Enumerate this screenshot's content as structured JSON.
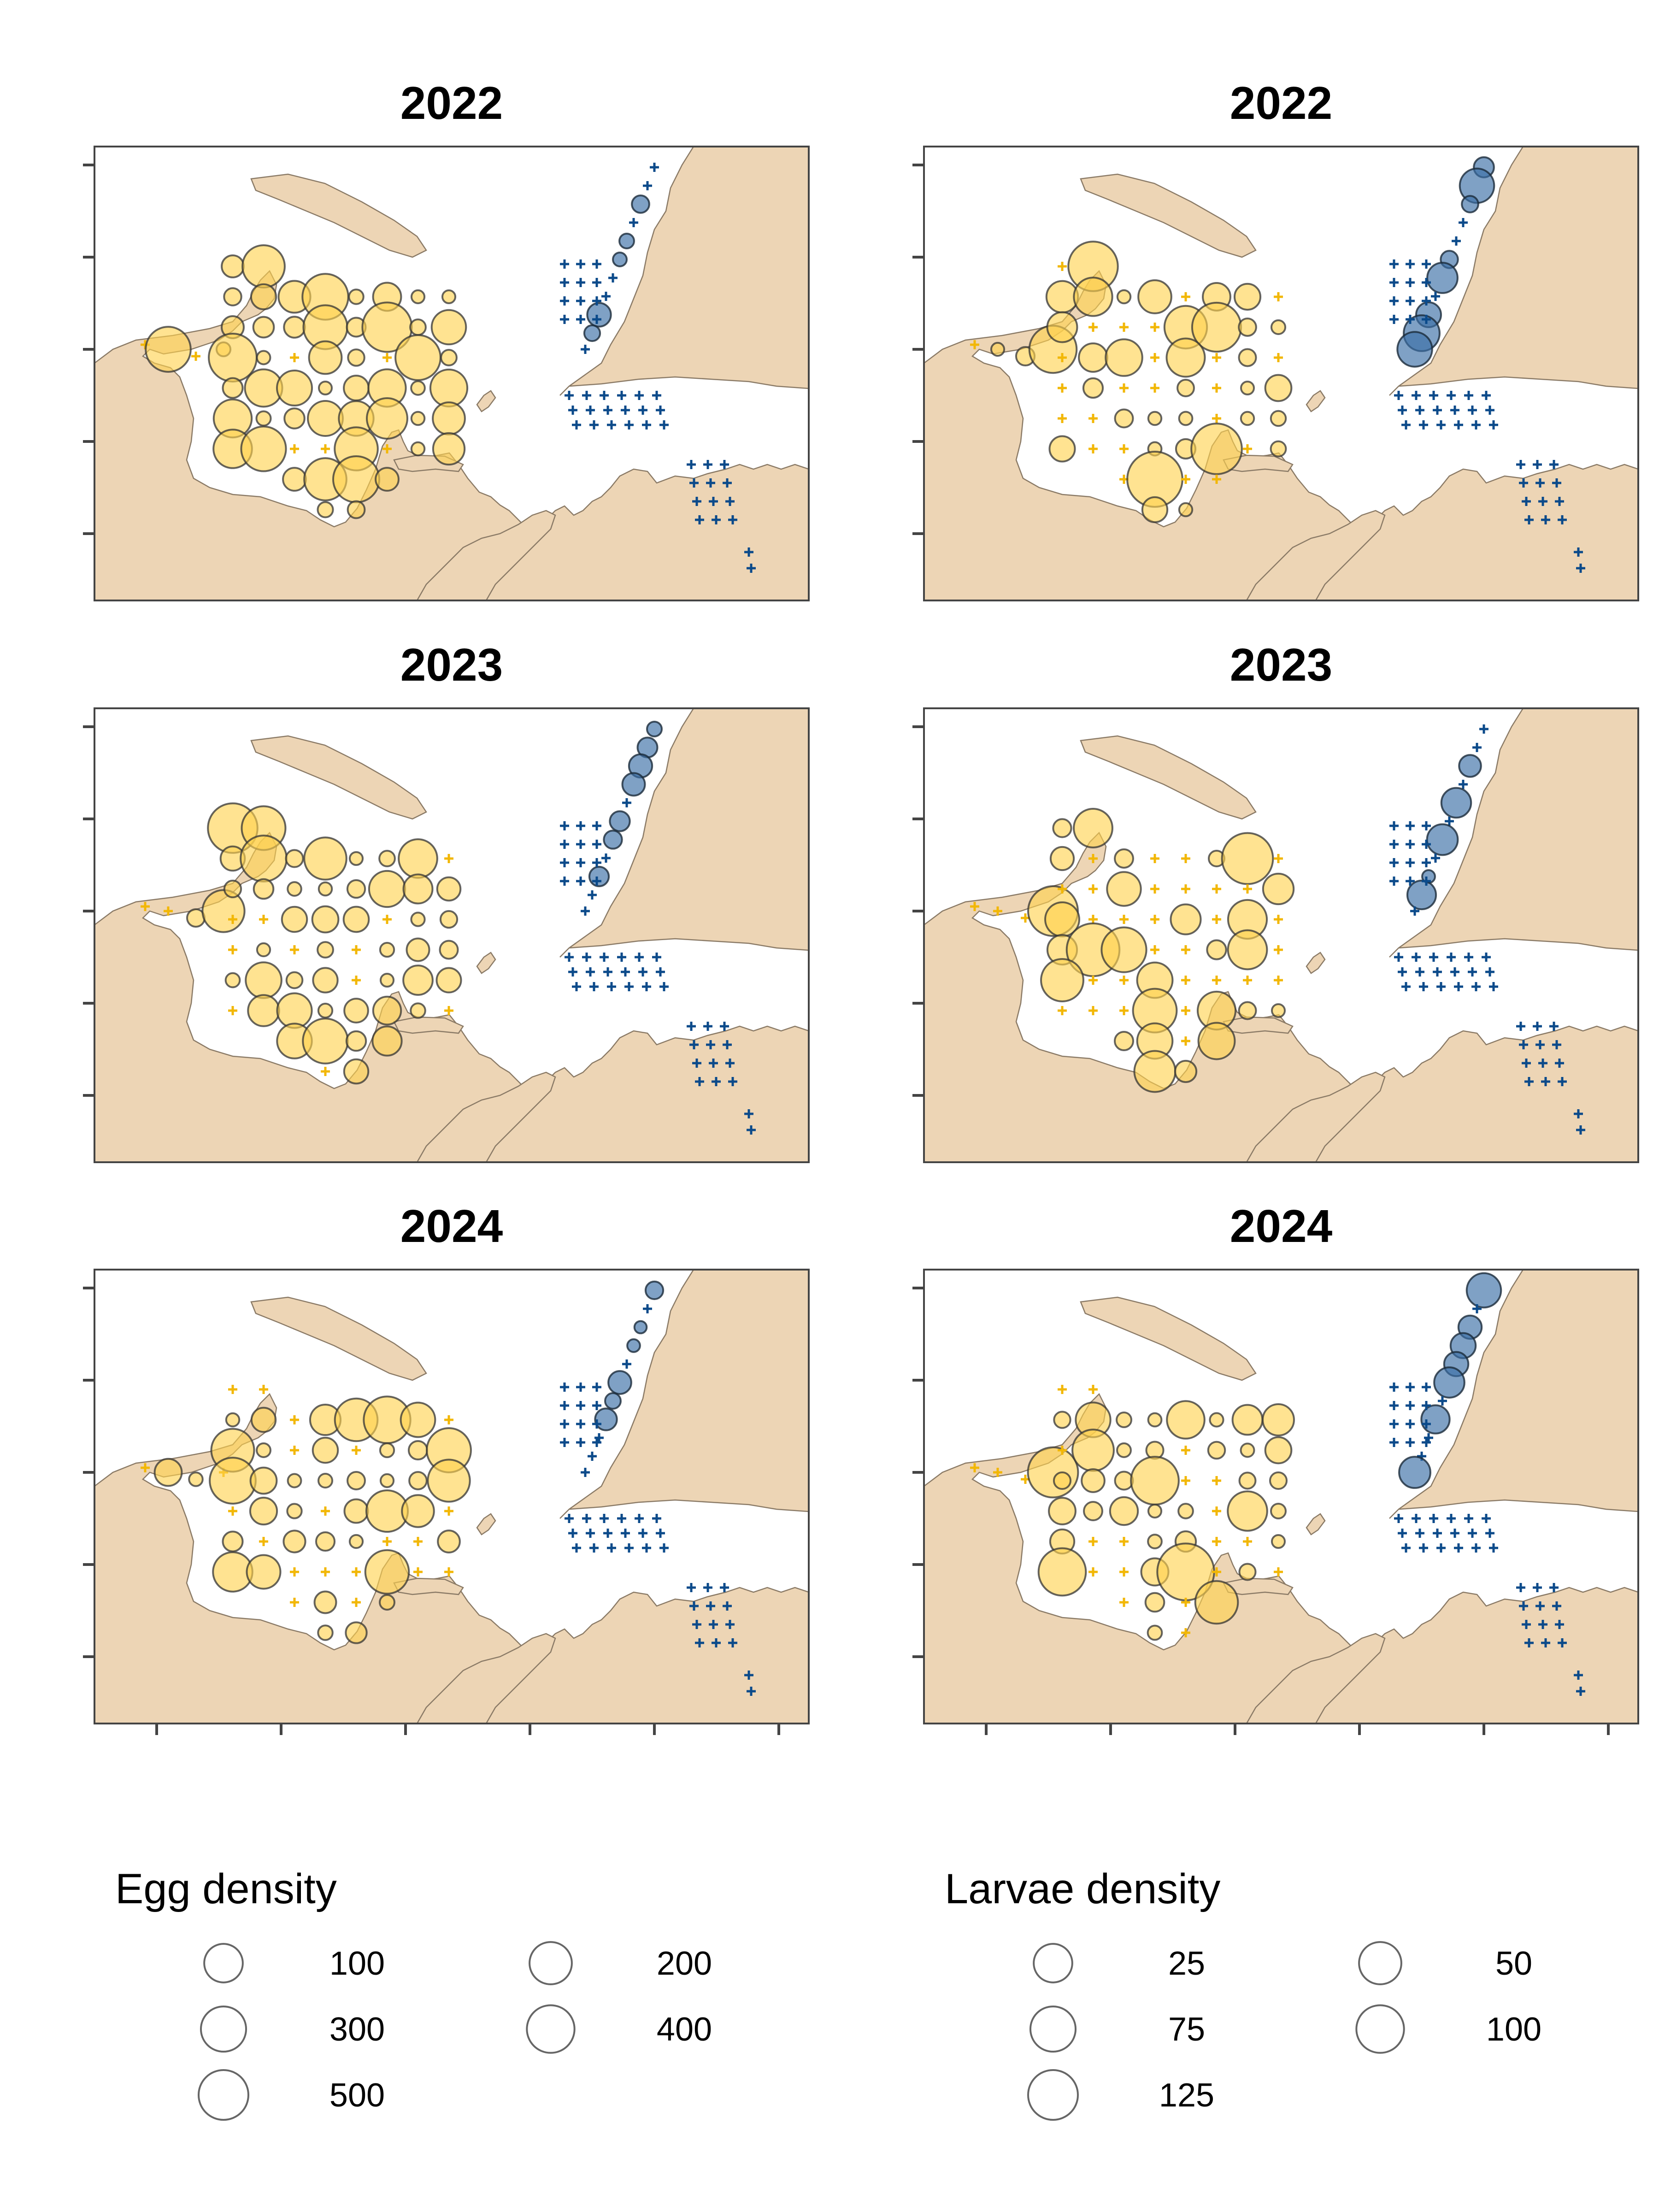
{
  "panels": [
    {
      "title": "2022",
      "variable": "egg"
    },
    {
      "title": "2022",
      "variable": "larvae"
    },
    {
      "title": "2023",
      "variable": "egg"
    },
    {
      "title": "2023",
      "variable": "larvae"
    },
    {
      "title": "2024",
      "variable": "egg"
    },
    {
      "title": "2024",
      "variable": "larvae"
    }
  ],
  "legends": {
    "egg": {
      "title": "Egg density",
      "items": [
        {
          "label": "100",
          "value": 100
        },
        {
          "label": "200",
          "value": 200
        },
        {
          "label": "300",
          "value": 300
        },
        {
          "label": "400",
          "value": 400
        },
        {
          "label": "500",
          "value": 500
        }
      ]
    },
    "larvae": {
      "title": "Larvae density",
      "items": [
        {
          "label": "25",
          "value": 25
        },
        {
          "label": "50",
          "value": 50
        },
        {
          "label": "75",
          "value": 75
        },
        {
          "label": "100",
          "value": 100
        },
        {
          "label": "125",
          "value": 125
        }
      ]
    }
  },
  "colors": {
    "land": "#EDD5B5",
    "gulf_points": "#FFD24D",
    "east_points": "#3B6FA6",
    "zero_gulf_marker": "#F2B705",
    "zero_east_marker": "#0B4A8A"
  },
  "marker_legend": {
    "zero_catch_symbol": "+"
  }
}
